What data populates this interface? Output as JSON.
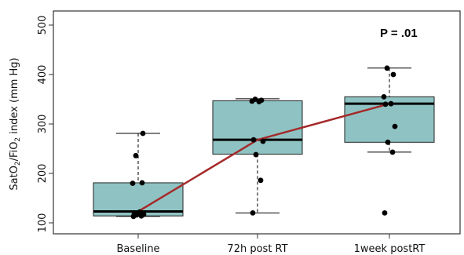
{
  "chart_data": {
    "type": "box",
    "ylabel_parts": [
      "SatO",
      "2",
      "/FiO",
      "2",
      " index (mm Hg)"
    ],
    "ylim": [
      85,
      520
    ],
    "yticks": [
      100,
      200,
      300,
      400,
      500
    ],
    "categories": [
      "Baseline",
      "72h post RT",
      "1week postRT"
    ],
    "boxes": [
      {
        "min": 113,
        "q1": 114,
        "median": 123,
        "q3": 181,
        "max": 281
      },
      {
        "min": 120,
        "q1": 239,
        "median": 268,
        "q3": 347,
        "max": 351
      },
      {
        "min": 243,
        "q1": 263,
        "median": 341,
        "q3": 355,
        "max": 413
      }
    ],
    "points": [
      [
        113,
        114,
        116,
        117,
        119,
        122,
        180,
        181,
        236,
        281
      ],
      [
        120,
        186,
        238,
        265,
        268,
        345,
        346,
        348,
        350
      ],
      [
        120,
        243,
        263,
        295,
        340,
        341,
        355,
        400,
        413
      ]
    ],
    "trend_line": [
      123,
      268,
      341
    ],
    "annotation": "P = .01",
    "colors": {
      "box_fill": "#8fc3c3",
      "trend": "#a52a2a",
      "points": "#000000"
    }
  }
}
